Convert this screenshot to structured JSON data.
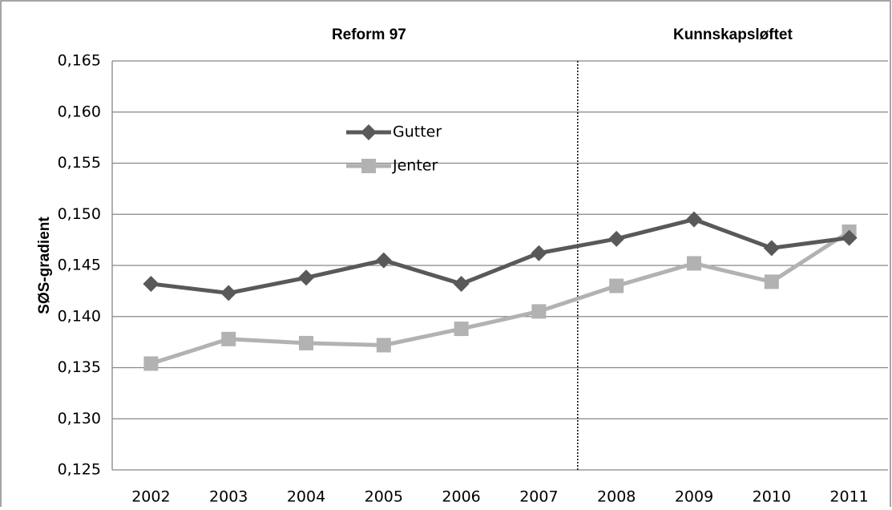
{
  "chart_data": {
    "type": "line",
    "annotations": [
      "Reform 97",
      "Kunnskapsløftet"
    ],
    "y_label": "SØS-gradient",
    "categories": [
      "2002",
      "2003",
      "2004",
      "2005",
      "2006",
      "2007",
      "2008",
      "2009",
      "2010",
      "2011"
    ],
    "series": [
      {
        "name": "Gutter",
        "color": "#595959",
        "marker": "diamond",
        "values": [
          0.1432,
          0.1423,
          0.1438,
          0.1455,
          0.1432,
          0.1462,
          0.1476,
          0.1495,
          0.1467,
          0.1477
        ]
      },
      {
        "name": "Jenter",
        "color": "#b2b2b2",
        "marker": "square",
        "values": [
          0.1354,
          0.1378,
          0.1374,
          0.1372,
          0.1388,
          0.1405,
          0.143,
          0.1452,
          0.1434,
          0.1483
        ]
      }
    ],
    "ylim": [
      0.125,
      0.165
    ],
    "yticks": [
      {
        "value": 0.125,
        "label": "0,125"
      },
      {
        "value": 0.13,
        "label": "0,130"
      },
      {
        "value": 0.135,
        "label": "0,135"
      },
      {
        "value": 0.14,
        "label": "0,140"
      },
      {
        "value": 0.145,
        "label": "0,145"
      },
      {
        "value": 0.15,
        "label": "0,150"
      },
      {
        "value": 0.155,
        "label": "0,155"
      },
      {
        "value": 0.16,
        "label": "0,160"
      },
      {
        "value": 0.165,
        "label": "0,165"
      }
    ],
    "grid": true
  }
}
